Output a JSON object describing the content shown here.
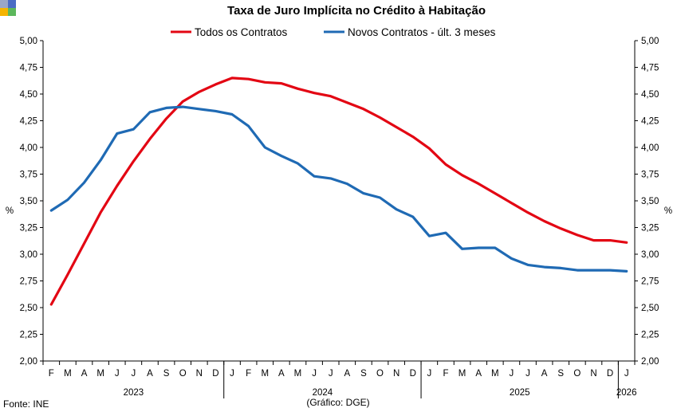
{
  "logo": {
    "colors": [
      "#9aa7c7",
      "#4a6cc4",
      "#f5b400",
      "#5cb85c"
    ]
  },
  "chart_data": {
    "type": "line",
    "title": "Taxa de Juro Implícita no Crédito à Habitação",
    "ylabel_left": "%",
    "ylabel_right": "%",
    "ylim": [
      2.0,
      5.0
    ],
    "yticks": [
      "2,00",
      "2,25",
      "2,50",
      "2,75",
      "3,00",
      "3,25",
      "3,50",
      "3,75",
      "4,00",
      "4,25",
      "4,50",
      "4,75",
      "5,00"
    ],
    "categories": [
      "F",
      "M",
      "A",
      "M",
      "J",
      "J",
      "A",
      "S",
      "O",
      "N",
      "D",
      "J",
      "F",
      "M",
      "A",
      "M",
      "J",
      "J",
      "A",
      "S",
      "O",
      "N",
      "D",
      "J",
      "F",
      "M",
      "A",
      "M",
      "J",
      "J",
      "A",
      "S",
      "O",
      "N",
      "D",
      "J"
    ],
    "years": [
      {
        "label": "2023",
        "start": 0,
        "end": 10
      },
      {
        "label": "2024",
        "start": 11,
        "end": 22
      },
      {
        "label": "2025",
        "start": 23,
        "end": 34
      },
      {
        "label": "2026",
        "start": 35,
        "end": 35
      }
    ],
    "series": [
      {
        "name": "Todos os Contratos",
        "color": "#e30613",
        "values": [
          2.53,
          2.81,
          3.1,
          3.39,
          3.64,
          3.87,
          4.08,
          4.27,
          4.43,
          4.52,
          4.59,
          4.65,
          4.64,
          4.61,
          4.6,
          4.55,
          4.51,
          4.48,
          4.42,
          4.36,
          4.28,
          4.19,
          4.1,
          3.99,
          3.84,
          3.74,
          3.66,
          3.57,
          3.48,
          3.39,
          3.31,
          3.24,
          3.18,
          3.13,
          3.13,
          3.11
        ]
      },
      {
        "name": "Novos Contratos - últ. 3 meses",
        "color": "#1f6ab4",
        "values": [
          3.41,
          3.51,
          3.67,
          3.88,
          4.13,
          4.17,
          4.33,
          4.37,
          4.38,
          4.36,
          4.34,
          4.31,
          4.2,
          4.0,
          3.92,
          3.85,
          3.73,
          3.71,
          3.66,
          3.57,
          3.53,
          3.42,
          3.35,
          3.17,
          3.2,
          3.05,
          3.06,
          3.06,
          2.96,
          2.9,
          2.88,
          2.87,
          2.85,
          2.85,
          2.85,
          2.84
        ]
      }
    ],
    "grid": false,
    "legend_position": "top"
  },
  "footer": {
    "source": "Fonte: INE",
    "credit": "(Gráfico: DGE)"
  }
}
